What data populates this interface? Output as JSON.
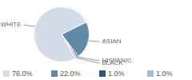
{
  "chart_data": {
    "type": "pie",
    "categories": [
      "WHITE",
      "ASIAN",
      "HISPANIC",
      "BLACK"
    ],
    "values": [
      76,
      22,
      1,
      1
    ],
    "value_labels": [
      "76.0%",
      "22.0%",
      "1.0%",
      "1.0%"
    ],
    "colors": [
      "#d3dde7",
      "#6189a8",
      "#2d5a7b",
      "#a9bccf"
    ],
    "legend": "bottom"
  }
}
